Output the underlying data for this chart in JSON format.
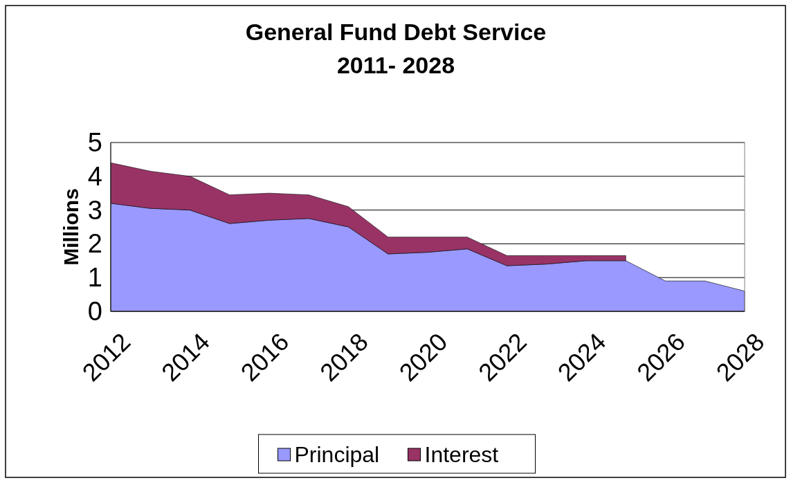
{
  "chart_data": {
    "type": "area",
    "title": "General Fund Debt Service",
    "subtitle": "2011- 2028",
    "ylabel": "Millions",
    "stacked": true,
    "x": [
      2012,
      2013,
      2014,
      2015,
      2016,
      2017,
      2018,
      2019,
      2020,
      2021,
      2022,
      2023,
      2024,
      2025,
      2026,
      2027,
      2028
    ],
    "series": [
      {
        "name": "Principal",
        "color": "#9999ff",
        "values": [
          3.2,
          3.05,
          3.0,
          2.6,
          2.7,
          2.75,
          2.5,
          1.7,
          1.75,
          1.85,
          1.35,
          1.4,
          1.5,
          1.5,
          0.9,
          0.9,
          0.6
        ]
      },
      {
        "name": "Interest",
        "color": "#993366",
        "values": [
          1.2,
          1.1,
          1.0,
          0.85,
          0.8,
          0.7,
          0.6,
          0.5,
          0.45,
          0.35,
          0.3,
          0.25,
          0.15,
          0.15,
          null,
          null,
          null
        ]
      }
    ],
    "xlim": [
      2012,
      2028
    ],
    "xticks": [
      2012,
      2014,
      2016,
      2018,
      2020,
      2022,
      2024,
      2026,
      2028
    ],
    "ylim": [
      0,
      5
    ],
    "yticks": [
      0,
      1,
      2,
      3,
      4,
      5
    ],
    "grid": "y",
    "legend": "bottom"
  }
}
